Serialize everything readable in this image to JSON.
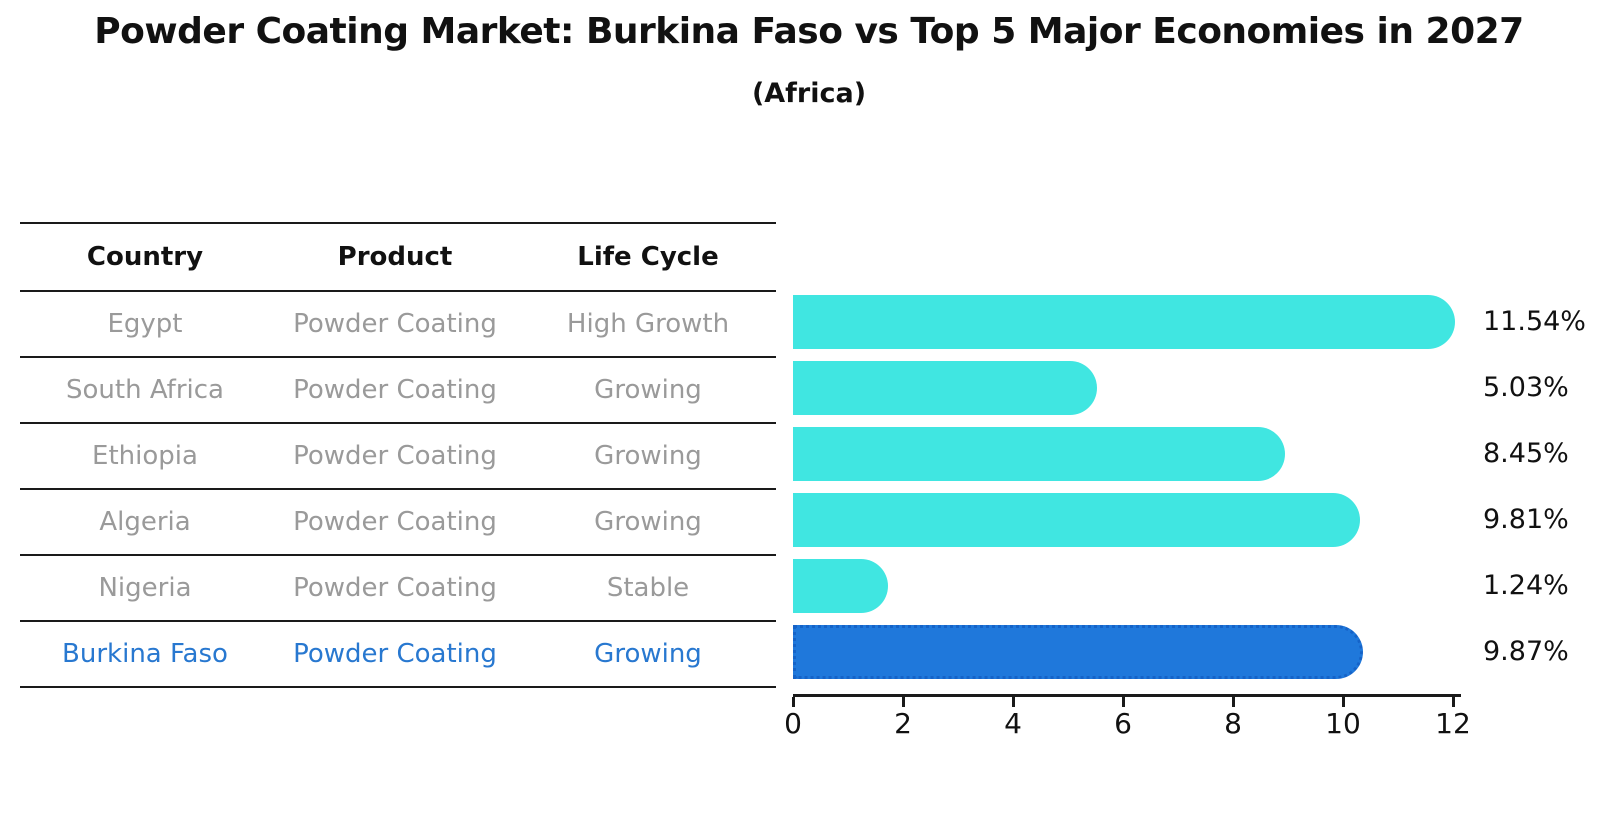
{
  "title": "Powder Coating Market: Burkina Faso vs Top 5 Major Economies in 2027",
  "subtitle": "(Africa)",
  "table": {
    "headers": [
      "Country",
      "Product",
      "Life Cycle"
    ],
    "rows": [
      {
        "country": "Egypt",
        "product": "Powder Coating",
        "life_cycle": "High Growth",
        "highlighted": false
      },
      {
        "country": "South Africa",
        "product": "Powder Coating",
        "life_cycle": "Growing",
        "highlighted": false
      },
      {
        "country": "Ethiopia",
        "product": "Powder Coating",
        "life_cycle": "Growing",
        "highlighted": false
      },
      {
        "country": "Algeria",
        "product": "Powder Coating",
        "life_cycle": "Growing",
        "highlighted": false
      },
      {
        "country": "Nigeria",
        "product": "Powder Coating",
        "life_cycle": "Stable",
        "highlighted": false
      },
      {
        "country": "Burkina Faso",
        "product": "Powder Coating",
        "life_cycle": "Growing",
        "highlighted": true
      }
    ]
  },
  "chart_data": {
    "type": "bar",
    "orientation": "horizontal",
    "title": "Powder Coating Market: Burkina Faso vs Top 5 Major Economies in 2027 (Africa)",
    "categories": [
      "Egypt",
      "South Africa",
      "Ethiopia",
      "Algeria",
      "Nigeria",
      "Burkina Faso"
    ],
    "values": [
      11.54,
      5.03,
      8.45,
      9.81,
      1.24,
      9.87
    ],
    "value_labels": [
      "11.54%",
      "5.03%",
      "8.45%",
      "9.81%",
      "1.24%",
      "9.87%"
    ],
    "xlabel": "",
    "ylabel": "",
    "xlim": [
      0,
      12
    ],
    "x_ticks": [
      0,
      2,
      4,
      6,
      8,
      10,
      12
    ],
    "grid": false,
    "legend": false,
    "bar_color": "#40E6E1",
    "highlight_bar_color": "#1F78DB",
    "highlight_border_color": "#1563C8",
    "highlight_index": 5
  },
  "colors": {
    "background": "#FFFFFF",
    "text_primary": "#111111",
    "table_text": "#9A9A9A",
    "highlight_text": "#2878D0",
    "rule_line": "#1A1A1A"
  }
}
